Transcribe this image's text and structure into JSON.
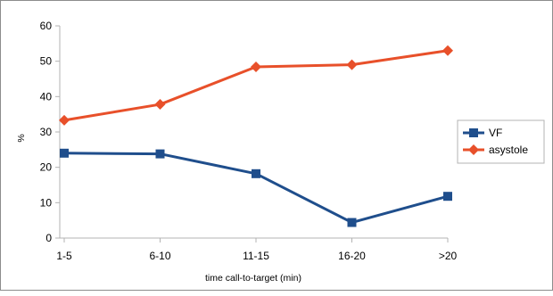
{
  "chart_data": {
    "type": "line",
    "categories": [
      "1-5",
      "6-10",
      "11-15",
      "16-20",
      ">20"
    ],
    "series": [
      {
        "name": "VF",
        "values": [
          24.0,
          23.8,
          18.2,
          4.4,
          11.8
        ],
        "color": "#1f4e8c",
        "marker": "square"
      },
      {
        "name": "asystole",
        "values": [
          33.3,
          37.8,
          48.4,
          49.0,
          53.0
        ],
        "color": "#e8502a",
        "marker": "diamond"
      }
    ],
    "xlabel": "time call-to-target (min)",
    "ylabel": "%",
    "ylim": [
      0,
      60
    ],
    "yticks": [
      0,
      10,
      20,
      30,
      40,
      50,
      60
    ],
    "grid": false,
    "legend": "right"
  }
}
